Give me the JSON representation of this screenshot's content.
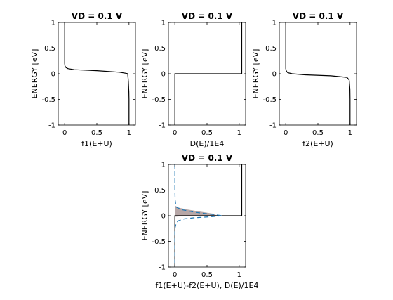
{
  "chart_data": [
    {
      "type": "line",
      "title": "VD = 0.1 V",
      "xlabel": "f1(E+U)",
      "ylabel": "ENERGY  [eV]",
      "xlim": [
        -0.1,
        1.1
      ],
      "ylim": [
        -1,
        1
      ],
      "xticks": [
        "0",
        "0.5",
        "1"
      ],
      "yticks": [
        "1",
        "0.5",
        "0",
        "-0.5",
        "-1"
      ],
      "series": [
        {
          "color": "#000000",
          "style": "solid",
          "points": [
            [
              1.0,
              -1.0
            ],
            [
              1.0,
              -0.5
            ],
            [
              0.998,
              -0.35
            ],
            [
              0.99,
              -0.15
            ],
            [
              0.98,
              0.0
            ],
            [
              0.95,
              0.01
            ],
            [
              0.85,
              0.03
            ],
            [
              0.5,
              0.06
            ],
            [
              0.15,
              0.08
            ],
            [
              0.05,
              0.1
            ],
            [
              0.02,
              0.12
            ],
            [
              0.005,
              0.15
            ],
            [
              0.0,
              0.2
            ],
            [
              0.0,
              1.0
            ]
          ]
        }
      ]
    },
    {
      "type": "line",
      "title": "VD = 0.1 V",
      "xlabel": "D(E)/1E4",
      "ylabel": "ENERGY  [eV]",
      "xlim": [
        -0.1,
        1.1
      ],
      "ylim": [
        -1,
        1
      ],
      "xticks": [
        "0",
        "0.5",
        "1"
      ],
      "yticks": [
        "1",
        "0.5",
        "0",
        "-0.5",
        "-1"
      ],
      "series": [
        {
          "color": "#000000",
          "style": "solid",
          "points": [
            [
              0.0,
              -1.0
            ],
            [
              0.0,
              0.0
            ],
            [
              1.04,
              0.0
            ],
            [
              1.04,
              1.0
            ]
          ]
        }
      ]
    },
    {
      "type": "line",
      "title": "VD = 0.1 V",
      "xlabel": "f2(E+U)",
      "ylabel": "ENERGY  [eV]",
      "xlim": [
        -0.1,
        1.1
      ],
      "ylim": [
        -1,
        1
      ],
      "xticks": [
        "0",
        "0.5",
        "1"
      ],
      "yticks": [
        "1",
        "0.5",
        "0",
        "-0.5",
        "-1"
      ],
      "series": [
        {
          "color": "#000000",
          "style": "solid",
          "points": [
            [
              1.0,
              -1.0
            ],
            [
              1.0,
              -0.5
            ],
            [
              0.998,
              -0.3
            ],
            [
              0.985,
              -0.12
            ],
            [
              0.95,
              -0.07
            ],
            [
              0.7,
              -0.04
            ],
            [
              0.3,
              -0.02
            ],
            [
              0.1,
              0.0
            ],
            [
              0.03,
              0.02
            ],
            [
              0.01,
              0.05
            ],
            [
              0.0,
              0.1
            ],
            [
              0.0,
              1.0
            ]
          ]
        }
      ]
    },
    {
      "type": "line",
      "title": "VD = 0.1 V",
      "xlabel": "f1(E+U)-f2(E+U), D(E)/1E4",
      "ylabel": "ENERGY  [eV]",
      "xlim": [
        -0.1,
        1.1
      ],
      "ylim": [
        -1,
        1
      ],
      "xticks": [
        "0",
        "0.5",
        "1"
      ],
      "yticks": [
        "1",
        "0.5",
        "0",
        "-0.5",
        "-1"
      ],
      "series": [
        {
          "color": "#000000",
          "style": "solid",
          "points": [
            [
              0.0,
              -1.0
            ],
            [
              0.0,
              0.0
            ],
            [
              1.04,
              0.0
            ],
            [
              1.04,
              1.0
            ]
          ]
        },
        {
          "color": "#1f77b4",
          "style": "dashed",
          "points": [
            [
              0.0,
              1.0
            ],
            [
              0.0,
              0.5
            ],
            [
              0.005,
              0.3
            ],
            [
              0.02,
              0.17
            ],
            [
              0.1,
              0.12
            ],
            [
              0.3,
              0.07
            ],
            [
              0.55,
              0.03
            ],
            [
              0.75,
              0.0
            ],
            [
              0.55,
              -0.02
            ],
            [
              0.3,
              -0.04
            ],
            [
              0.15,
              -0.06
            ],
            [
              0.05,
              -0.1
            ],
            [
              0.02,
              -0.15
            ],
            [
              0.0,
              -0.25
            ],
            [
              0.0,
              -1.0
            ]
          ]
        },
        {
          "color": "#b7a7a7",
          "style": "fill",
          "points": [
            [
              0.0,
              -0.02
            ],
            [
              0.0,
              0.2
            ],
            [
              0.05,
              0.16
            ],
            [
              0.2,
              0.12
            ],
            [
              0.4,
              0.08
            ],
            [
              0.6,
              0.04
            ],
            [
              0.66,
              0.0
            ],
            [
              0.4,
              -0.01
            ],
            [
              0.1,
              -0.01
            ]
          ]
        }
      ]
    }
  ]
}
